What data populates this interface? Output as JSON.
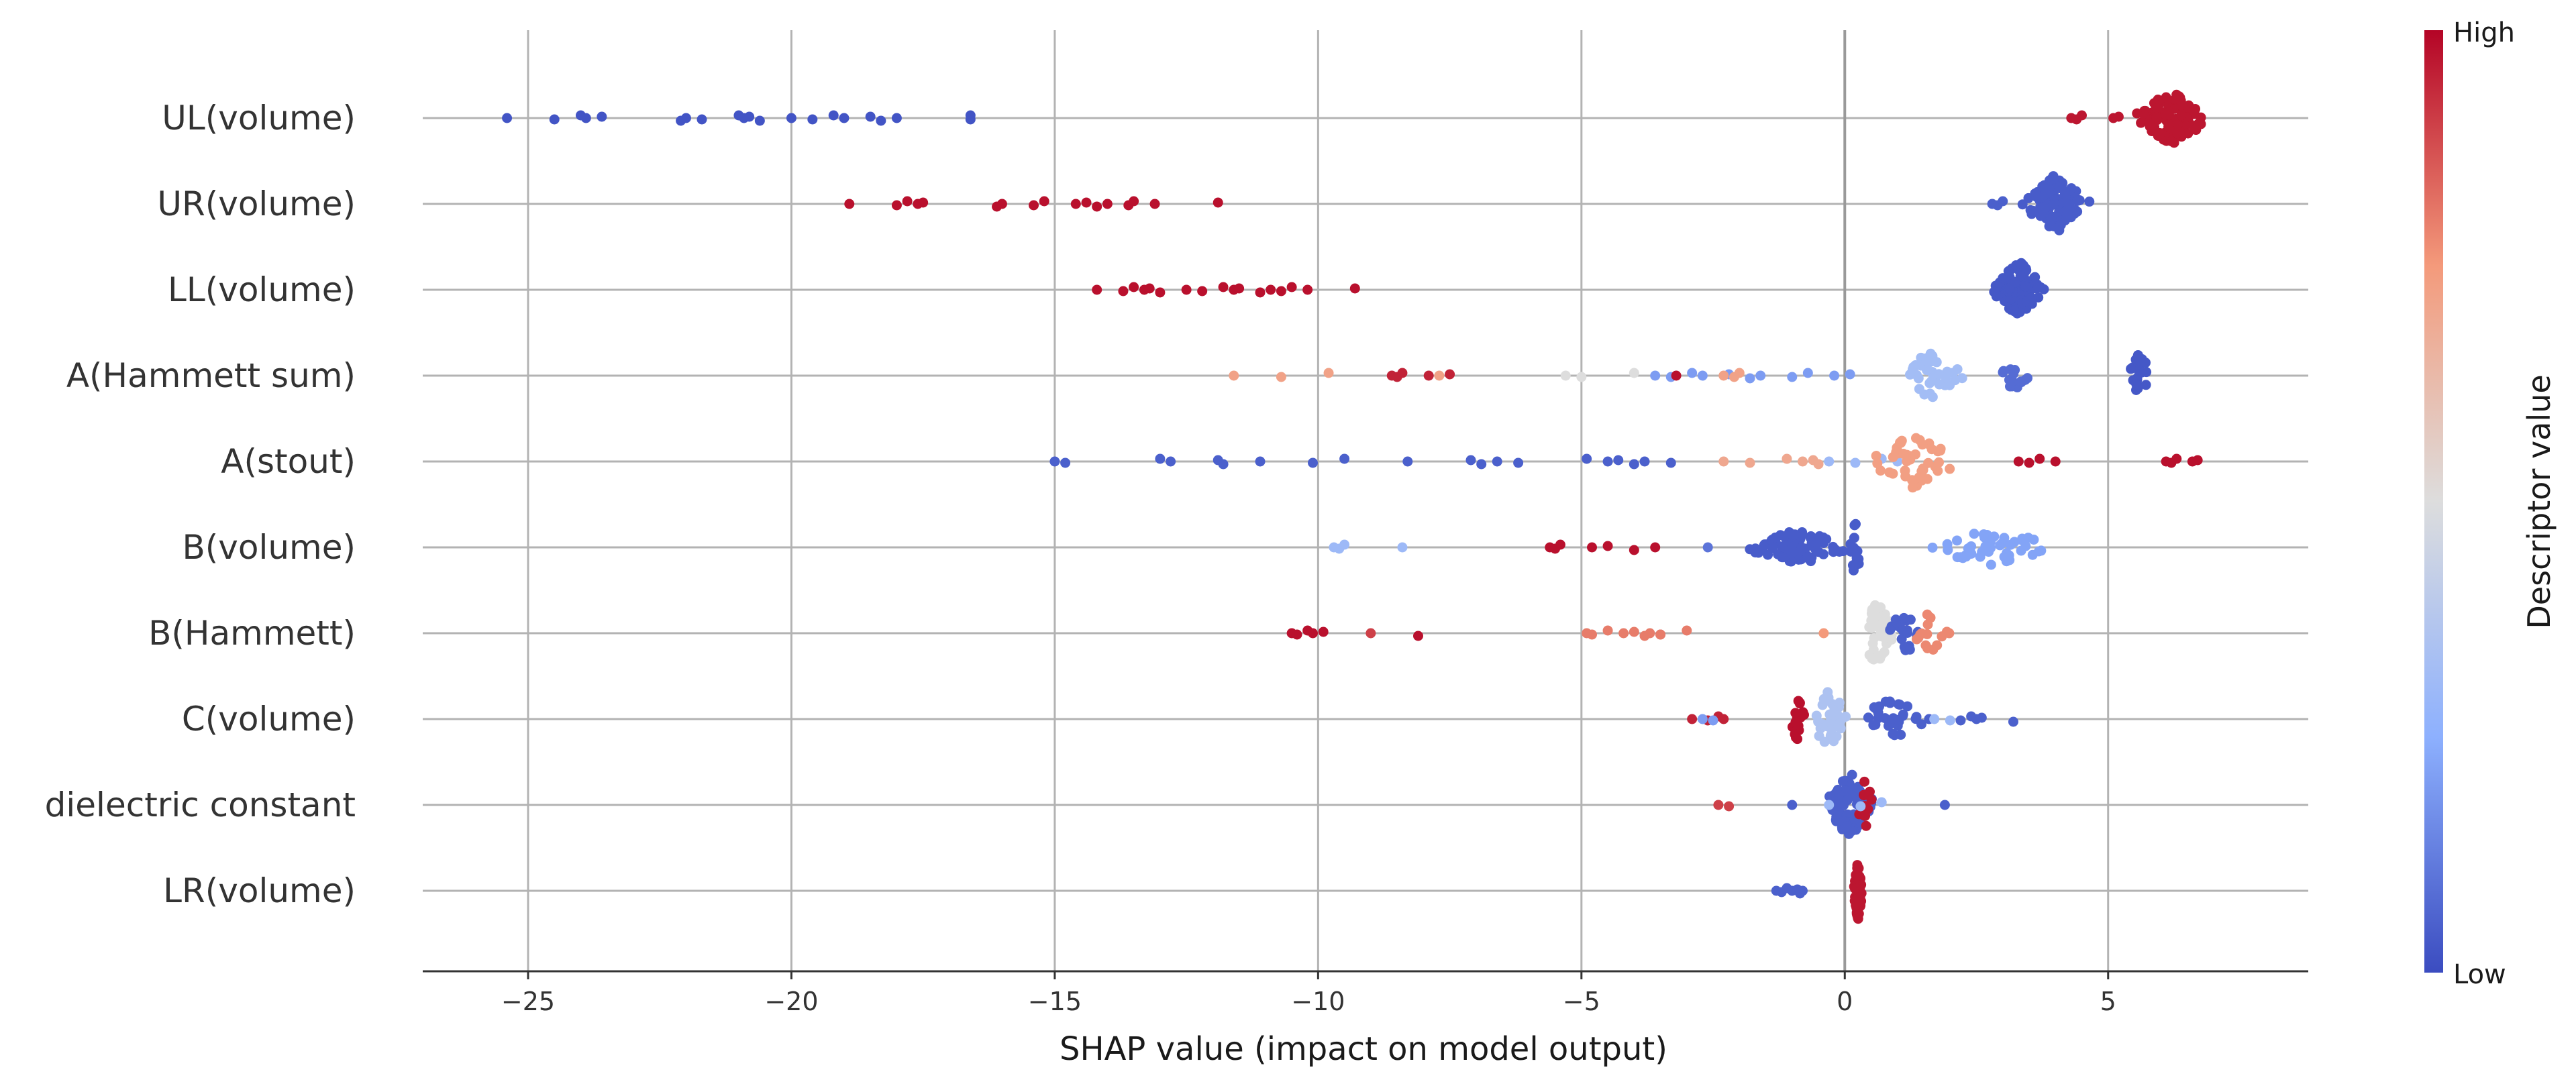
{
  "chart_data": {
    "type": "scatter",
    "subtype": "shap-beeswarm",
    "xlabel": "SHAP value (impact on model output)",
    "xlim": [
      -27,
      8.8
    ],
    "xticks": [
      -25,
      -20,
      -15,
      -10,
      -5,
      0,
      5
    ],
    "xtick_labels": [
      "−25",
      "−20",
      "−15",
      "−10",
      "−5",
      "0",
      "5"
    ],
    "grid": true,
    "colormap": {
      "low": "#3b4cc0",
      "mid": "#dddddd",
      "high": "#b40426"
    },
    "colorbar": {
      "label": "Descriptor value",
      "high_label": "High",
      "low_label": "Low",
      "placement": "right"
    },
    "features": [
      {
        "name": "UL(volume)",
        "clusters": [
          {
            "x": [
              -25.4,
              -24.5,
              -24.0,
              -23.9,
              -23.6,
              -22.1,
              -22.0,
              -21.7,
              -21.0,
              -20.9,
              -20.8,
              -20.6,
              -20.0,
              -19.6,
              -19.2,
              -19.0,
              -18.5,
              -18.3,
              -18.0,
              -16.6,
              -16.6
            ],
            "c": 0.02
          },
          {
            "cx": 6.2,
            "w": 0.85,
            "n": 110,
            "c": 0.97,
            "spread": 0.9
          },
          {
            "x": [
              4.3,
              4.4,
              4.5,
              5.1,
              5.2
            ],
            "c": 0.97
          }
        ]
      },
      {
        "name": "UR(volume)",
        "clusters": [
          {
            "x": [
              -18.9,
              -18.0,
              -17.8,
              -17.6,
              -17.5,
              -16.1,
              -16.0,
              -15.4,
              -15.2,
              -14.6,
              -14.4,
              -14.2,
              -14.0,
              -13.6,
              -13.5,
              -13.1,
              -11.9
            ],
            "c": 0.98
          },
          {
            "cx": 4.0,
            "w": 0.7,
            "n": 95,
            "c": 0.04,
            "spread": 1.0
          },
          {
            "x": [
              2.8,
              2.9,
              3.0
            ],
            "c": 0.05
          }
        ]
      },
      {
        "name": "LL(volume)",
        "clusters": [
          {
            "x": [
              -14.2,
              -13.7,
              -13.5,
              -13.3,
              -13.2,
              -13.0,
              -12.5,
              -12.2,
              -11.8,
              -11.6,
              -11.5,
              -11.1,
              -10.9,
              -10.7,
              -10.5,
              -10.2,
              -9.3
            ],
            "c": 0.98
          },
          {
            "cx": 3.3,
            "w": 0.55,
            "n": 110,
            "c": 0.03,
            "spread": 1.0
          }
        ]
      },
      {
        "name": "A(Hammett sum)",
        "clusters": [
          {
            "x": [
              -11.6,
              -10.7,
              -9.8,
              -7.7
            ],
            "c": 0.72
          },
          {
            "x": [
              -8.6,
              -8.5,
              -8.4,
              -7.9,
              -7.5
            ],
            "c": 0.95
          },
          {
            "x": [
              -5.3,
              -5.0,
              -4.0
            ],
            "c": 0.5
          },
          {
            "x": [
              -3.6,
              -3.3,
              -2.9,
              -2.7,
              -2.2,
              -1.8,
              -1.6,
              -1.0,
              -0.7,
              -0.2,
              0.1
            ],
            "c": 0.2
          },
          {
            "x": [
              -2.3,
              -2.1,
              -2.0
            ],
            "c": 0.72
          },
          {
            "x": [
              -3.2
            ],
            "c": 0.98
          },
          {
            "cx": 1.6,
            "w": 0.8,
            "n": 38,
            "c": 0.32,
            "spread": 0.8
          },
          {
            "cx": 3.2,
            "w": 0.4,
            "n": 14,
            "c": 0.08,
            "spread": 0.6
          },
          {
            "cx": 5.6,
            "w": 0.25,
            "n": 20,
            "c": 0.03,
            "spread": 0.8
          }
        ]
      },
      {
        "name": "A(stout)",
        "clusters": [
          {
            "x": [
              -15.0,
              -14.8,
              -13.0,
              -12.8,
              -11.9,
              -11.8,
              -11.1,
              -10.1,
              -9.5,
              -8.3,
              -7.1,
              -6.9,
              -6.6,
              -6.2,
              -4.9,
              -4.5,
              -4.3,
              -4.0,
              -3.8,
              -3.3
            ],
            "c": 0.05
          },
          {
            "x": [
              -2.3,
              -1.8,
              -1.1,
              -0.8,
              -0.6,
              -0.5
            ],
            "c": 0.7
          },
          {
            "x": [
              -0.3,
              0.2,
              0.7,
              1.0
            ],
            "c": 0.3
          },
          {
            "cx": 1.3,
            "w": 1.0,
            "n": 45,
            "c": 0.73,
            "spread": 0.9
          },
          {
            "x": [
              3.3,
              3.5,
              3.7,
              4.0
            ],
            "c": 0.98
          },
          {
            "x": [
              6.1,
              6.2,
              6.3,
              6.6,
              6.7
            ],
            "c": 0.98
          }
        ]
      },
      {
        "name": "B(volume)",
        "clusters": [
          {
            "x": [
              -9.7,
              -9.6,
              -9.5,
              -8.4
            ],
            "c": 0.3
          },
          {
            "x": [
              -5.6,
              -5.5,
              -5.4,
              -4.8,
              -4.5,
              -4.0,
              -3.6
            ],
            "c": 0.98
          },
          {
            "x": [
              -2.6
            ],
            "c": 0.1
          },
          {
            "cx": -0.9,
            "w": 1.3,
            "n": 75,
            "c": 0.04,
            "spread": 0.6
          },
          {
            "cx": 0.2,
            "w": 0.15,
            "n": 15,
            "c": 0.04,
            "spread": 1.0
          },
          {
            "cx": 2.8,
            "w": 1.4,
            "n": 45,
            "c": 0.22,
            "spread": 0.65
          }
        ]
      },
      {
        "name": "B(Hammett)",
        "clusters": [
          {
            "x": [
              -10.5,
              -10.4,
              -10.2,
              -10.1,
              -9.9,
              -8.1
            ],
            "c": 0.98
          },
          {
            "x": [
              -9.0,
              -3.5
            ],
            "c": 0.9
          },
          {
            "x": [
              -4.9,
              -4.8,
              -4.5,
              -4.2,
              -4.0,
              -3.8,
              -3.7,
              -3.5,
              -3.0
            ],
            "c": 0.8
          },
          {
            "x": [
              -0.4
            ],
            "c": 0.75
          },
          {
            "cx": 0.6,
            "w": 0.4,
            "n": 55,
            "c": 0.5,
            "spread": 1.1
          },
          {
            "cx": 1.1,
            "w": 0.5,
            "n": 20,
            "c": 0.05,
            "spread": 0.8
          },
          {
            "cx": 1.6,
            "w": 0.5,
            "n": 15,
            "c": 0.78,
            "spread": 0.7
          }
        ]
      },
      {
        "name": "C(volume)",
        "clusters": [
          {
            "x": [
              -2.9,
              -2.6,
              -2.4,
              -2.3
            ],
            "c": 0.95
          },
          {
            "x": [
              -2.7,
              -2.5
            ],
            "c": 0.2
          },
          {
            "cx": -0.9,
            "w": 0.15,
            "n": 20,
            "c": 0.98,
            "spread": 0.9
          },
          {
            "cx": -0.3,
            "w": 0.45,
            "n": 35,
            "c": 0.35,
            "spread": 1.0
          },
          {
            "cx": 0.9,
            "w": 0.8,
            "n": 30,
            "c": 0.05,
            "spread": 0.7
          },
          {
            "x": [
              1.6,
              2.2,
              2.4,
              2.5,
              2.6,
              3.2
            ],
            "c": 0.05
          },
          {
            "x": [
              1.7,
              2.0
            ],
            "c": 0.3
          }
        ]
      },
      {
        "name": "dielectric constant",
        "clusters": [
          {
            "x": [
              -2.4,
              -2.2
            ],
            "c": 0.9
          },
          {
            "x": [
              -1.0
            ],
            "c": 0.05
          },
          {
            "cx": 0.1,
            "w": 0.6,
            "n": 85,
            "c": 0.05,
            "spread": 1.1
          },
          {
            "cx": 0.4,
            "w": 0.2,
            "n": 12,
            "c": 0.97,
            "spread": 1.0
          },
          {
            "x": [
              -0.3,
              0.3,
              0.7
            ],
            "c": 0.3
          },
          {
            "x": [
              1.9
            ],
            "c": 0.05
          }
        ]
      },
      {
        "name": "LR(volume)",
        "clusters": [
          {
            "x": [
              -1.3,
              -1.2,
              -1.1,
              -1.0,
              -0.9,
              -0.85,
              -0.8
            ],
            "c": 0.05
          },
          {
            "cx": 0.25,
            "w": 0.1,
            "n": 55,
            "c": 0.97,
            "spread": 1.0
          }
        ]
      }
    ]
  }
}
